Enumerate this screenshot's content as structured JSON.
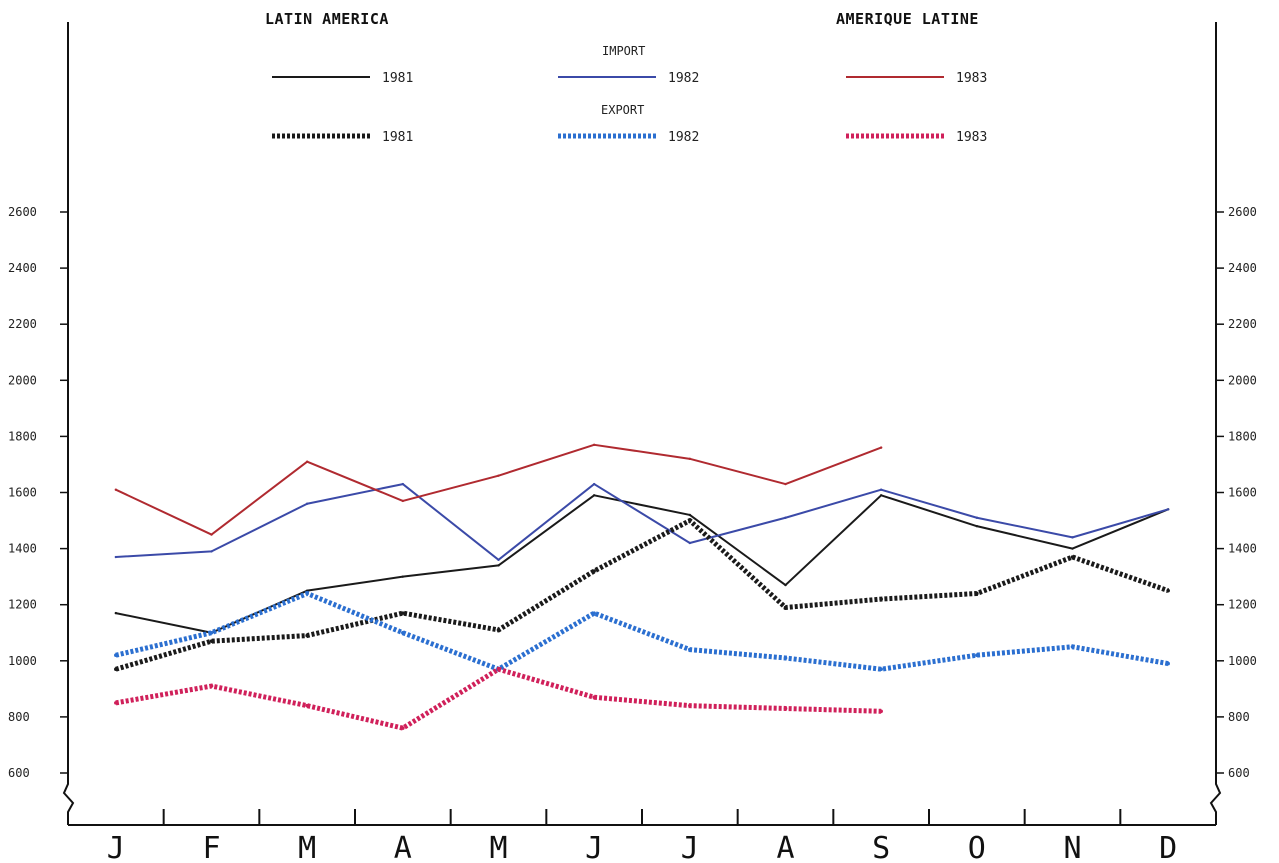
{
  "chart_data": {
    "type": "line",
    "title_left": "LATIN AMERICA",
    "title_right": "AMERIQUE LATINE",
    "categories": [
      "J",
      "F",
      "M",
      "A",
      "M",
      "J",
      "J",
      "A",
      "S",
      "O",
      "N",
      "D"
    ],
    "y_ticks": [
      "600",
      "800",
      "1000",
      "1200",
      "1400",
      "1600",
      "1800",
      "2000",
      "2200",
      "2400",
      "2600"
    ],
    "ylim": [
      600,
      2600
    ],
    "legend": {
      "import_label": "IMPORT",
      "export_label": "EXPORT",
      "years": [
        "1981",
        "1982",
        "1983"
      ]
    },
    "colors": {
      "1981": "#1a1a1a",
      "1982": "#3b4aa8",
      "1983": "#b02a30",
      "export_1982": "#2b6fd0",
      "export_1983": "#d0205a"
    },
    "series": [
      {
        "name": "1981",
        "group": "IMPORT",
        "x": [
          0.5,
          1.5,
          2.5,
          3.5,
          4.5,
          5.5,
          6.5,
          7.5,
          8.5,
          9.5,
          10.5,
          11.5
        ],
        "values": [
          1170,
          1100,
          1250,
          1300,
          1340,
          1590,
          1520,
          1270,
          1590,
          1480,
          1400,
          1540
        ]
      },
      {
        "name": "1982",
        "group": "IMPORT",
        "x": [
          0.5,
          1.5,
          2.5,
          3.5,
          4.5,
          5.5,
          6.5,
          7.5,
          8.5,
          9.5,
          10.5,
          11.5
        ],
        "values": [
          1370,
          1390,
          1560,
          1630,
          1360,
          1630,
          1420,
          1510,
          1610,
          1510,
          1440,
          1540
        ]
      },
      {
        "name": "1983",
        "group": "IMPORT",
        "x": [
          0.5,
          1.5,
          2.5,
          3.5,
          4.5,
          5.5,
          6.5,
          7.5,
          8.5
        ],
        "values": [
          1610,
          1450,
          1710,
          1570,
          1660,
          1770,
          1720,
          1630,
          1760
        ]
      },
      {
        "name": "1981",
        "group": "EXPORT",
        "x": [
          0.5,
          1.5,
          2.5,
          3.5,
          4.5,
          5.5,
          6.5,
          7.5,
          8.5,
          9.5,
          10.5,
          11.5
        ],
        "values": [
          970,
          1070,
          1090,
          1170,
          1110,
          1320,
          1500,
          1190,
          1220,
          1240,
          1370,
          1250
        ]
      },
      {
        "name": "1982",
        "group": "EXPORT",
        "x": [
          0.5,
          1.5,
          2.5,
          3.5,
          4.5,
          5.5,
          6.5,
          7.5,
          8.5,
          9.5,
          10.5,
          11.5
        ],
        "values": [
          1020,
          1100,
          1240,
          1100,
          970,
          1170,
          1040,
          1010,
          970,
          1020,
          1050,
          990
        ]
      },
      {
        "name": "1983",
        "group": "EXPORT",
        "x": [
          0.5,
          1.5,
          2.5,
          3.5,
          4.5,
          5.5,
          6.5,
          7.5,
          8.5
        ],
        "values": [
          850,
          910,
          840,
          760,
          970,
          870,
          840,
          830,
          820
        ]
      }
    ]
  }
}
